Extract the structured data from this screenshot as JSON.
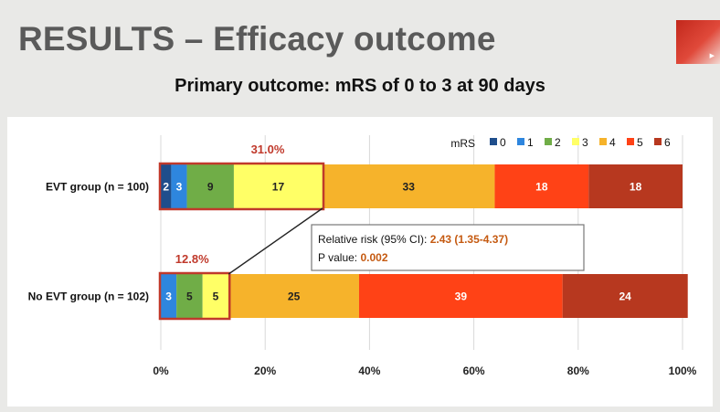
{
  "slide": {
    "title": "RESULTS – Efficacy outcome",
    "subtitle": "Primary outcome: mRS of 0 to 3 at 90 days"
  },
  "colors": {
    "title": "#5a5a5a",
    "highlight": "#c0392b",
    "annotation_value": "#c55a11"
  },
  "chart_data": {
    "type": "bar",
    "orientation": "horizontal",
    "stacked": true,
    "categories": [
      "EVT group (n = 100)",
      "No EVT group (n = 102)"
    ],
    "legend_title": "mRS",
    "legend_placement": "top-right",
    "series": [
      {
        "name": "0",
        "color": "#1f4e8c",
        "values": [
          2,
          0
        ]
      },
      {
        "name": "1",
        "color": "#2e86de",
        "values": [
          3,
          3
        ]
      },
      {
        "name": "2",
        "color": "#70ad47",
        "values": [
          9,
          5
        ]
      },
      {
        "name": "3",
        "color": "#ffff66",
        "values": [
          17,
          5
        ]
      },
      {
        "name": "4",
        "color": "#f6b32b",
        "values": [
          33,
          25
        ]
      },
      {
        "name": "5",
        "color": "#ff4216",
        "values": [
          18,
          39
        ]
      },
      {
        "name": "6",
        "color": "#b7381f",
        "values": [
          18,
          24
        ]
      }
    ],
    "data_labels": [
      [
        "2",
        "3",
        "9",
        "17",
        "33",
        "18",
        "18"
      ],
      [
        "",
        "3",
        "5",
        "5",
        "25",
        "39",
        "24"
      ]
    ],
    "cumulative_highlight": [
      "31.0%",
      "12.8%"
    ],
    "xlim": [
      0,
      100
    ],
    "x_ticks": [
      "0%",
      "20%",
      "40%",
      "60%",
      "80%",
      "100%"
    ],
    "grid": true,
    "annotation": {
      "line1_label": "Relative risk (95% CI): ",
      "line1_value": "2.43 (1.35-4.37)",
      "line2_label": "P value: ",
      "line2_value": "0.002"
    }
  }
}
